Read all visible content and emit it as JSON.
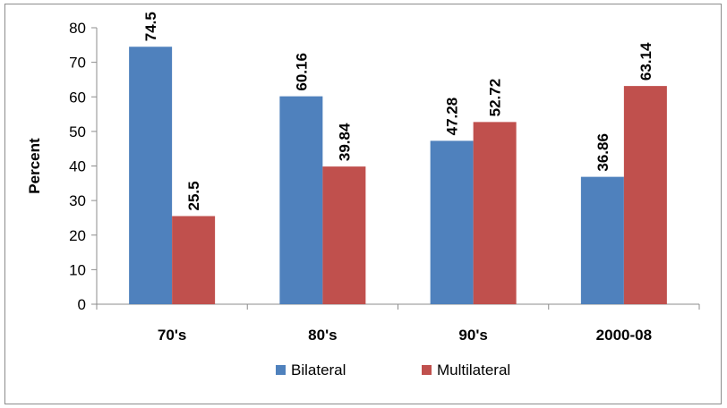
{
  "chart_data": {
    "type": "bar",
    "categories": [
      "70's",
      "80's",
      "90's",
      "2000-08"
    ],
    "series": [
      {
        "name": "Bilateral",
        "color": "#4f81bd",
        "values": [
          74.5,
          60.16,
          47.28,
          36.86
        ]
      },
      {
        "name": "Multilateral",
        "color": "#c0504d",
        "values": [
          25.5,
          39.84,
          52.72,
          63.14
        ]
      }
    ],
    "title": "",
    "xlabel": "",
    "ylabel": "Percent",
    "ylim": [
      0,
      80
    ],
    "yticks": [
      0,
      10,
      20,
      30,
      40,
      50,
      60,
      70,
      80
    ],
    "grid": false,
    "legend_position": "bottom",
    "data_label_rotation": "vertical"
  }
}
